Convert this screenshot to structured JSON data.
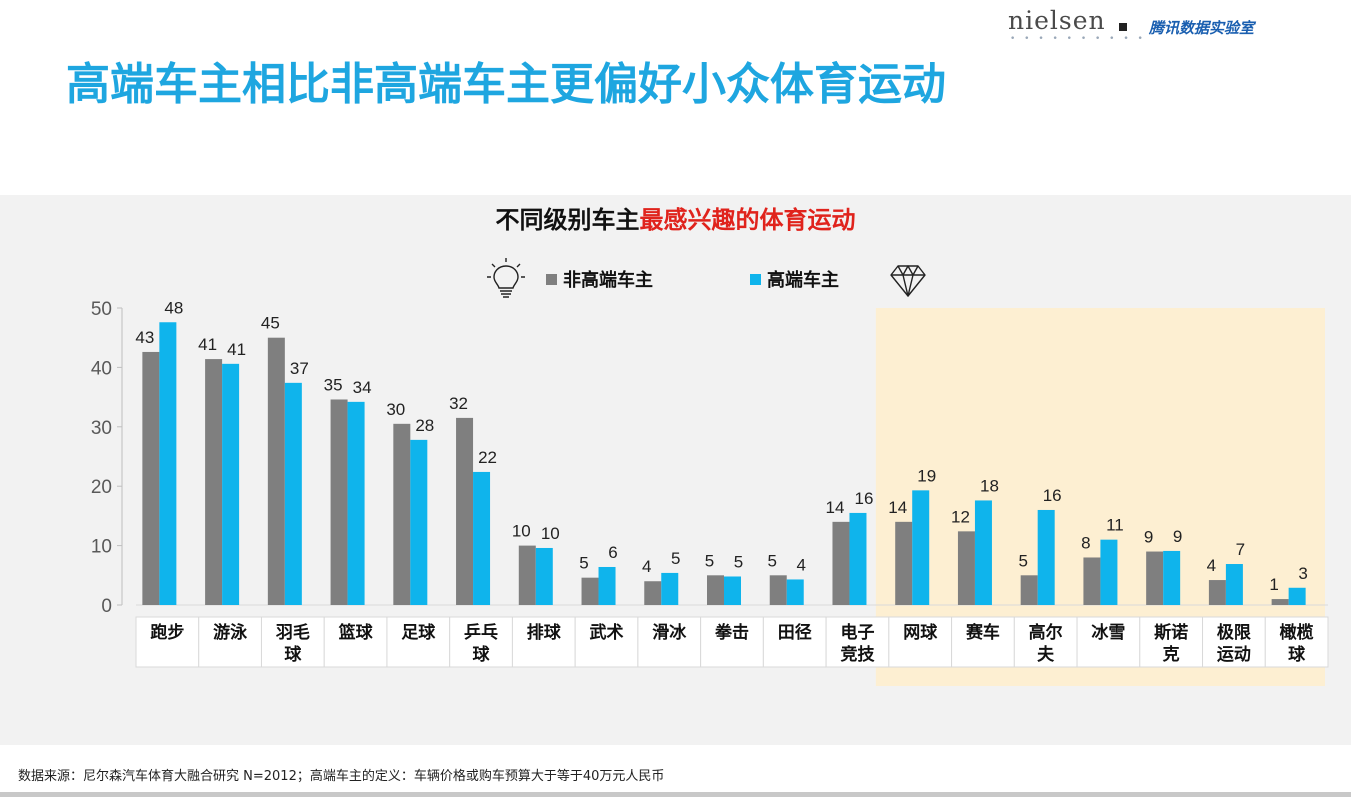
{
  "branding": {
    "nielsen_logo": "nielsen",
    "nielsen_dots": "• • • • • • • • • •",
    "partner": "腾讯数据实验室"
  },
  "page_title": "高端车主相比非高端车主更偏好小众体育运动",
  "chart_data": {
    "type": "bar",
    "title_part1": "不同级别车主",
    "title_part2": "最感兴趣的体育运动",
    "categories": [
      [
        "跑步"
      ],
      [
        "游泳"
      ],
      [
        "羽毛",
        "球"
      ],
      [
        "篮球"
      ],
      [
        "足球"
      ],
      [
        "乒乓",
        "球"
      ],
      [
        "排球"
      ],
      [
        "武术"
      ],
      [
        "滑冰"
      ],
      [
        "拳击"
      ],
      [
        "田径"
      ],
      [
        "电子",
        "竞技"
      ],
      [
        "网球"
      ],
      [
        "赛车"
      ],
      [
        "高尔",
        "夫"
      ],
      [
        "冰雪"
      ],
      [
        "斯诺",
        "克"
      ],
      [
        "极限",
        "运动"
      ],
      [
        "橄榄",
        "球"
      ]
    ],
    "series": [
      {
        "name": "非高端车主",
        "color": "#7f7f7f",
        "values": [
          42.6,
          41.4,
          45,
          34.6,
          30.5,
          31.5,
          10,
          4.6,
          4,
          5,
          5,
          14,
          14,
          12.4,
          5,
          8,
          9,
          4.2,
          1
        ],
        "labels": [
          "43",
          "41",
          "45",
          "35",
          "30",
          "32",
          "10",
          "5",
          "4",
          "5",
          "5",
          "14",
          "14",
          "12",
          "5",
          "8",
          "9",
          "4",
          "1"
        ]
      },
      {
        "name": "高端车主",
        "color": "#0fb4ec",
        "values": [
          47.6,
          40.6,
          37.4,
          34.2,
          27.8,
          22.4,
          9.6,
          6.4,
          5.4,
          4.8,
          4.3,
          15.5,
          19.3,
          17.6,
          16,
          11,
          9.1,
          6.9,
          2.9
        ],
        "labels": [
          "48",
          "41",
          "37",
          "34",
          "28",
          "22",
          "10",
          "6",
          "5",
          "5",
          "4",
          "16",
          "19",
          "18",
          "16",
          "11",
          "9",
          "7",
          "3"
        ]
      }
    ],
    "ylim": [
      0,
      50
    ],
    "yticks": [
      "0",
      "10",
      "20",
      "30",
      "40",
      "50"
    ],
    "highlight_range": [
      12,
      18
    ],
    "highlight_color": "#fdefd2",
    "grid": false,
    "legend_position": "top-center"
  },
  "source_note": "数据来源：尼尔森汽车体育大融合研究 N=2012；高端车主的定义：车辆价格或购车预算大于等于40万元人民币"
}
